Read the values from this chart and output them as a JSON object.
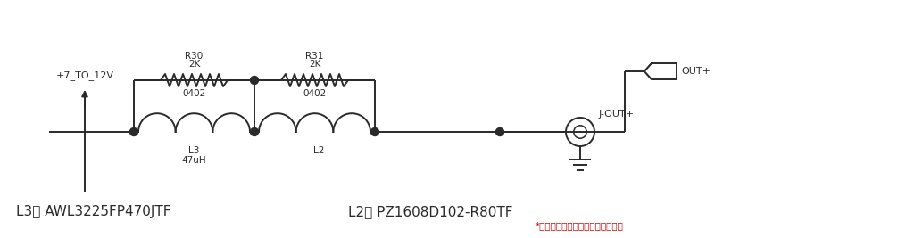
{
  "bg_color": "#ffffff",
  "line_color": "#2a2a2a",
  "text_color": "#2a2a2a",
  "red_color": "#cc0000",
  "label_L3": "L3： AWL3225FP470JTF",
  "label_L2": "L2： PZ1608D102-R80TF",
  "label_L2_star": "*",
  "label_note": "二级滤波中的磁珠是非汽车电子品",
  "R30": "R30",
  "R30_val": "2K",
  "R30_pkg": "0402",
  "R31": "R31",
  "R31_val": "2K",
  "R31_pkg": "0402",
  "L3": "L3",
  "L3_val": "47uH",
  "L2": "L2",
  "input_label": "+7_TO_12V",
  "out_label": "OUT+",
  "j_out_label": "J-OUT+",
  "figsize": [
    10.15,
    2.67
  ],
  "dpi": 100
}
